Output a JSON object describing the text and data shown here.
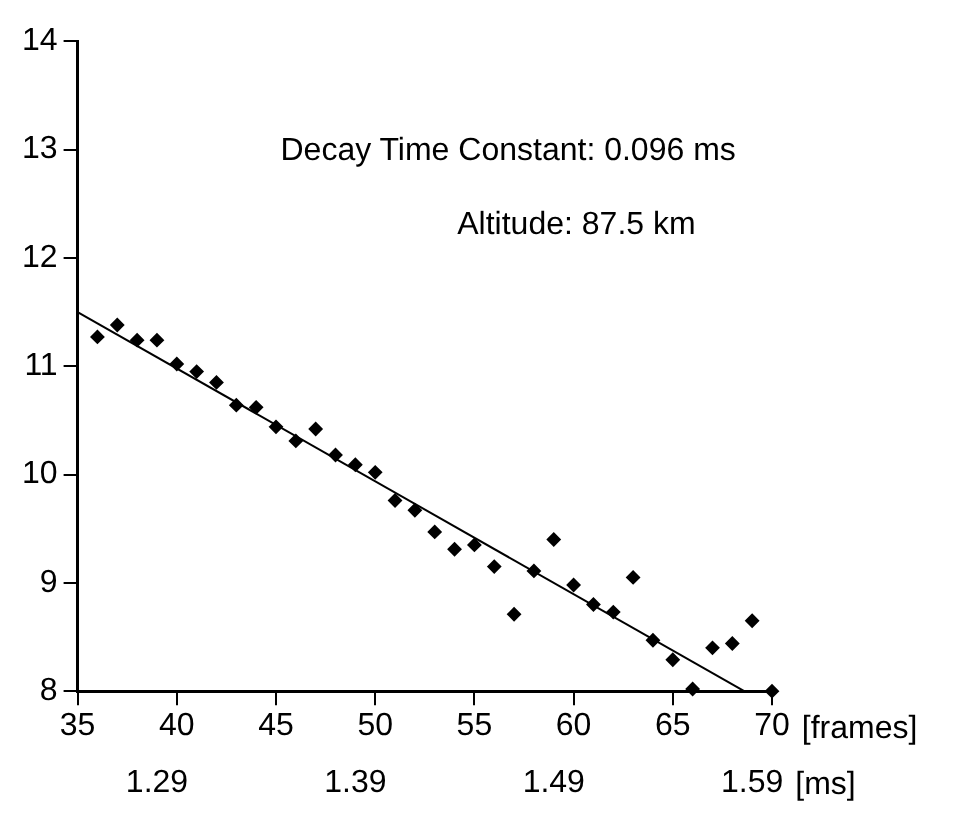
{
  "chart_data": {
    "type": "scatter",
    "xlabel": "[frames]",
    "x2label": "[ms]",
    "annotations": [
      "Decay Time Constant: 0.096 ms",
      "Altitude: 87.5 km"
    ],
    "xlim": [
      35,
      70
    ],
    "xticks": [
      35,
      40,
      45,
      50,
      55,
      60,
      65,
      70
    ],
    "ylim": [
      8,
      14
    ],
    "yticks": [
      8,
      9,
      10,
      11,
      12,
      13,
      14
    ],
    "x2lim": [
      1.25,
      1.6
    ],
    "x2ticks": [
      1.29,
      1.39,
      1.49,
      1.59
    ],
    "series": [
      {
        "color": "#000000",
        "marker": "diamond",
        "x": [
          36,
          37,
          38,
          39,
          40,
          41,
          42,
          43,
          44,
          45,
          46,
          47,
          48,
          49,
          50,
          51,
          52,
          53,
          54,
          55,
          56,
          57,
          58,
          59,
          60,
          61,
          62,
          63,
          64,
          65,
          66,
          67,
          68,
          69,
          70
        ],
        "values": [
          11.27,
          11.38,
          11.24,
          11.24,
          11.02,
          10.95,
          10.85,
          10.64,
          10.62,
          10.44,
          10.31,
          10.42,
          10.18,
          10.09,
          10.02,
          9.76,
          9.67,
          9.47,
          9.31,
          9.35,
          9.15,
          8.71,
          9.11,
          9.4,
          8.98,
          8.8,
          8.73,
          9.05,
          8.47,
          8.29,
          8.02,
          8.4,
          8.44,
          8.65,
          8.0
        ]
      },
      {
        "type": "line",
        "color": "#000000",
        "marker": "none",
        "x": [
          35,
          68.6
        ],
        "values": [
          11.5,
          8.0
        ]
      }
    ]
  }
}
